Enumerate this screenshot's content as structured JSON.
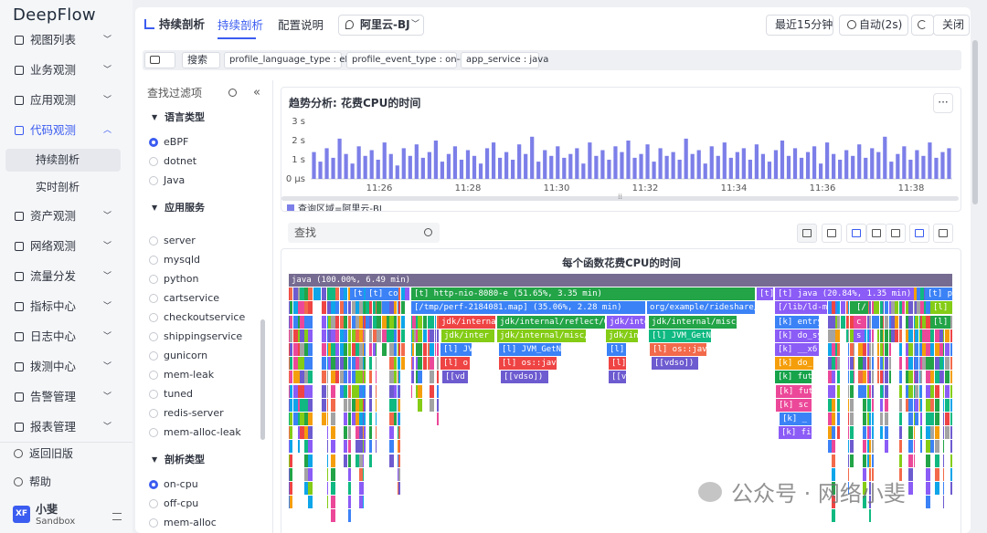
{
  "sidebar": {
    "logo": "DeepFlow",
    "nav": [
      "视图列表",
      "业务观测",
      "应用观测",
      "代码观测",
      "资产观测",
      "网络观测",
      "流量分发",
      "指标中心",
      "日志中心",
      "拨测中心",
      "告警管理",
      "报表管理"
    ],
    "subnav": [
      "持续剖析",
      "实时剖析"
    ],
    "footer": [
      "返回旧版",
      "帮助"
    ],
    "user": {
      "avatar": "XF",
      "name": "小斐",
      "org": "Sandbox"
    }
  },
  "header": {
    "page_title": "持续剖析",
    "tabs": [
      "持续剖析",
      "配置说明"
    ],
    "region": "阿里云-BJ",
    "time_range": "最近15分钟",
    "refresh": "自动(2s)",
    "close": "关闭"
  },
  "filter_bar": {
    "search_label": "搜索",
    "tags": [
      "profile_language_type : eBPF",
      "profile_event_type : on-cpu",
      "app_service : java"
    ]
  },
  "filter_panel": {
    "search_placeholder": "查找过滤项",
    "groups": [
      {
        "title": "语言类型",
        "options": [
          "eBPF",
          "dotnet",
          "Java"
        ]
      },
      {
        "title": "应用服务",
        "options": [
          "server",
          "mysqld",
          "python",
          "cartservice",
          "checkoutservice",
          "shippingservice",
          "gunicorn",
          "mem-leak",
          "tuned",
          "redis-server",
          "mem-alloc-leak"
        ]
      },
      {
        "title": "剖析类型",
        "options": [
          "on-cpu",
          "off-cpu",
          "mem-alloc"
        ]
      }
    ]
  },
  "trend": {
    "type": "bar",
    "title": "趋势分析: 花费CPU的时间",
    "color": "#7c7fe8",
    "ylim": [
      0,
      3
    ],
    "yticks": [
      {
        "value": 3,
        "label": "3 s"
      },
      {
        "value": 2,
        "label": "2 s"
      },
      {
        "value": 1,
        "label": "1 s"
      },
      {
        "value": 0,
        "label": "0 μs"
      }
    ],
    "xticks": [
      "11:26",
      "11:28",
      "11:30",
      "11:32",
      "11:34",
      "11:36",
      "11:38"
    ],
    "legend": "查询区域=阿里云-BJ",
    "values": [
      1.4,
      0.9,
      1.6,
      1.1,
      2.1,
      1.3,
      0.8,
      1.7,
      1.2,
      1.5,
      1.0,
      1.9,
      1.3,
      0.7,
      1.6,
      1.2,
      1.8,
      1.1,
      1.4,
      2.0,
      0.9,
      1.3,
      1.7,
      1.0,
      1.5,
      1.2,
      0.8,
      1.6,
      1.9,
      1.1,
      1.4,
      1.0,
      1.8,
      1.3,
      2.2,
      0.9,
      1.5,
      1.2,
      1.7,
      1.1,
      1.3,
      1.6,
      0.8,
      1.9,
      1.2,
      1.5,
      1.0,
      1.7,
      1.4,
      2.0,
      1.1,
      1.3,
      1.8,
      0.9,
      1.6,
      1.2,
      1.4,
      1.0,
      2.1,
      1.3,
      1.5,
      0.8,
      1.7,
      1.2,
      1.9,
      1.1,
      1.4,
      1.6,
      1.0,
      1.8,
      1.3,
      0.9,
      1.5,
      2.0,
      1.2,
      1.6,
      1.1,
      1.4,
      1.7,
      0.8,
      1.9,
      1.3,
      1.0,
      1.5,
      1.2,
      1.8,
      1.1,
      1.6,
      1.4,
      2.2,
      0.9,
      1.3,
      1.7,
      1.0,
      1.5,
      1.2,
      1.9,
      1.1,
      1.4,
      1.6
    ]
  },
  "flame": {
    "search_placeholder": "查找",
    "title": "每个函数花费CPU的时间",
    "frames": [
      "java (100.00%, 6.49 min)",
      "[t]",
      "[t] co",
      "[t] http-nio-8080-e (51.65%, 3.35 min)",
      "[t]",
      "[t] java (20.84%, 1.35 min)",
      "[t] p",
      "[/tmp/perf-2184081.map] (35.06%, 2.28 min)",
      "org/example/rideshare/Or",
      "[/lib/ld-mu",
      "[/",
      "[l]",
      "jdk/internal",
      "jdk/internal/reflect/Gene",
      "jdk/inte",
      "jdk/internal/misc/V",
      "[k] entry",
      "c",
      "[l]",
      "jdk/inter",
      "jdk/internal/misc/VM",
      "jdk/in",
      "[l] JVM_GetNan",
      "[k] do_sy",
      "s",
      "[l] JV",
      "[l] JVM_GetNan",
      "[l]",
      "[l] os::java",
      "[k] __x6",
      "[l] o",
      "[l] os::java",
      "[l]",
      "[[vdso]) (",
      "[k] do_",
      "[[vd",
      "[[vdso]) (",
      "[[v",
      "[k] fut",
      "[k] fut",
      "[k] sc",
      "[k] _",
      "[k] fi"
    ]
  },
  "watermark": "公众号 · 网络小斐"
}
